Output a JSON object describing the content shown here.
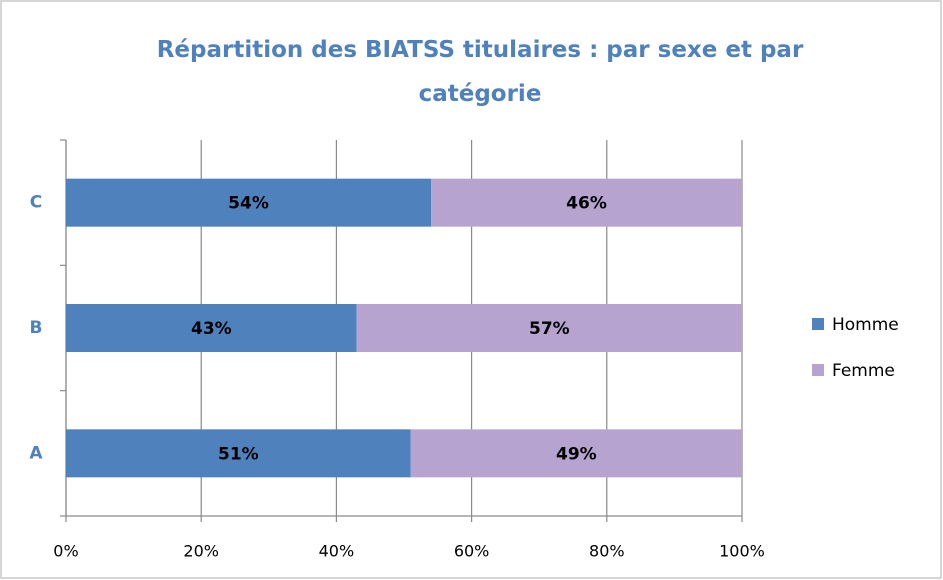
{
  "chart_data": {
    "type": "bar",
    "orientation": "horizontal",
    "stacked": true,
    "title": "Répartition des BIATSS titulaires : par sexe et par catégorie",
    "categories": [
      "A",
      "B",
      "C"
    ],
    "series": [
      {
        "name": "Homme",
        "color": "#4f81bd",
        "values": [
          51,
          43,
          54
        ],
        "value_labels": [
          "51%",
          "43%",
          "54%"
        ]
      },
      {
        "name": "Femme",
        "color": "#b7a3cf",
        "values": [
          49,
          57,
          46
        ],
        "value_labels": [
          "49%",
          "57%",
          "46%"
        ]
      }
    ],
    "xlim": [
      0,
      100
    ],
    "xticks": [
      {
        "value": 0,
        "label": "0%"
      },
      {
        "value": 20,
        "label": "20%"
      },
      {
        "value": 40,
        "label": "40%"
      },
      {
        "value": 60,
        "label": "60%"
      },
      {
        "value": 80,
        "label": "80%"
      },
      {
        "value": 100,
        "label": "100%"
      }
    ],
    "grid": true,
    "legend": "right"
  }
}
